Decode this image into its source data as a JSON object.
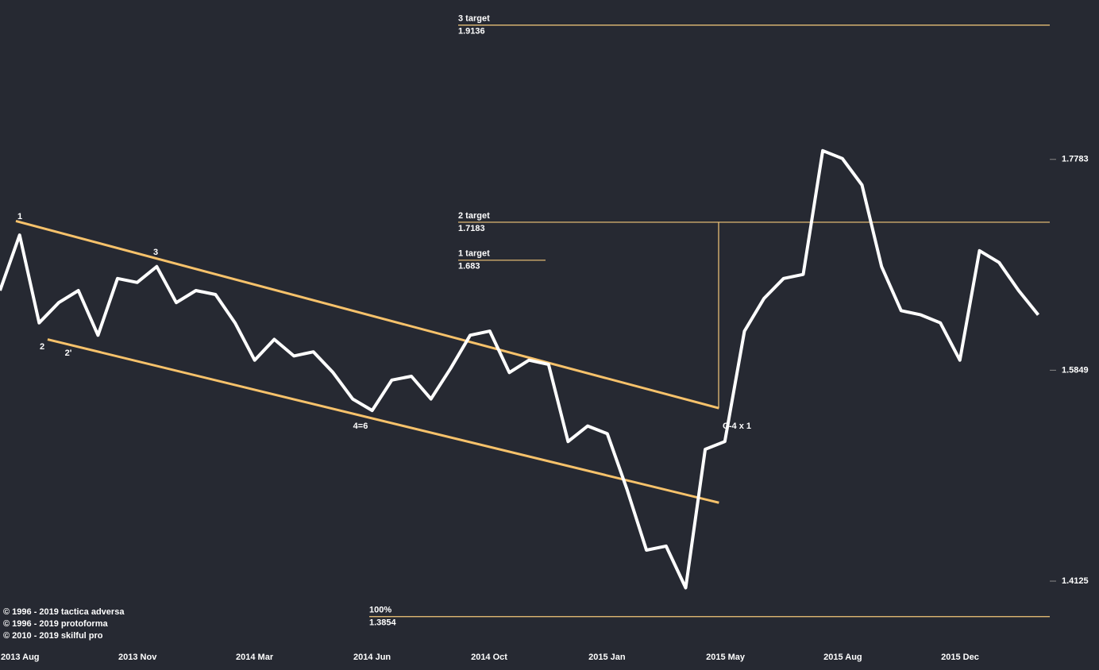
{
  "chart_data": {
    "type": "line",
    "log_scale": true,
    "categories": [
      "2013 Aug",
      null,
      null,
      null,
      null,
      null,
      "2013 Nov",
      null,
      null,
      null,
      null,
      null,
      "2014 Mar",
      null,
      null,
      null,
      null,
      null,
      "2014 Jun",
      null,
      null,
      null,
      null,
      null,
      "2014 Oct",
      null,
      null,
      null,
      null,
      null,
      "2015 Jan",
      null,
      null,
      null,
      null,
      null,
      "2015 May",
      null,
      null,
      null,
      null,
      null,
      "2015 Aug",
      null,
      null,
      null,
      null,
      null,
      "2015 Dec",
      null,
      null,
      null,
      null,
      null
    ],
    "series": [
      {
        "color": "#ffffff",
        "values": [
          1.6554,
          1.7063,
          1.6264,
          1.6445,
          1.6554,
          1.6155,
          1.6663,
          1.6627,
          1.6772,
          1.6445,
          1.6554,
          1.6518,
          1.6264,
          1.5936,
          1.6118,
          1.5973,
          1.6009,
          1.5829,
          1.5602,
          1.5504,
          1.5764,
          1.5797,
          1.5602,
          1.5864,
          1.6155,
          1.6191,
          1.5829,
          1.5936,
          1.59,
          1.5244,
          1.5374,
          1.5309,
          1.4854,
          1.4366,
          1.4398,
          1.4073,
          1.5179,
          1.5244,
          1.6191,
          1.6482,
          1.6663,
          1.67,
          1.7868,
          1.7791,
          1.7536,
          1.6772,
          1.6373,
          1.6336,
          1.6264,
          1.5936,
          1.6918,
          1.6809,
          1.6554,
          1.6336
        ]
      }
    ],
    "ylim": [
      1.3626,
      1.94
    ],
    "yticks": [
      1.4125,
      1.5849,
      1.7783
    ],
    "channel_color": "#f7c26b",
    "channel": [
      {
        "x": [
          0.81,
          36.7
        ],
        "y": [
          1.7194,
          1.5524
        ]
      },
      {
        "x": [
          2.43,
          36.7
        ],
        "y": [
          1.6118,
          1.4743
        ]
      }
    ],
    "target_color": "#f5c97a",
    "targets": [
      {
        "label": "3 target",
        "value": 1.9136
      },
      {
        "label": "2 target",
        "value": 1.7183
      },
      {
        "label": "1 target",
        "value": 1.683
      },
      {
        "label": "100%",
        "value": 1.3854
      }
    ],
    "annotations": [
      "1",
      "2",
      "2'",
      "3",
      "4=6",
      "C-4 x 1"
    ],
    "copyright": [
      "© 1996 - 2019 tactica adversa",
      "© 1996 - 2019 protoforma",
      "© 2010 - 2019 skilful pro"
    ]
  }
}
